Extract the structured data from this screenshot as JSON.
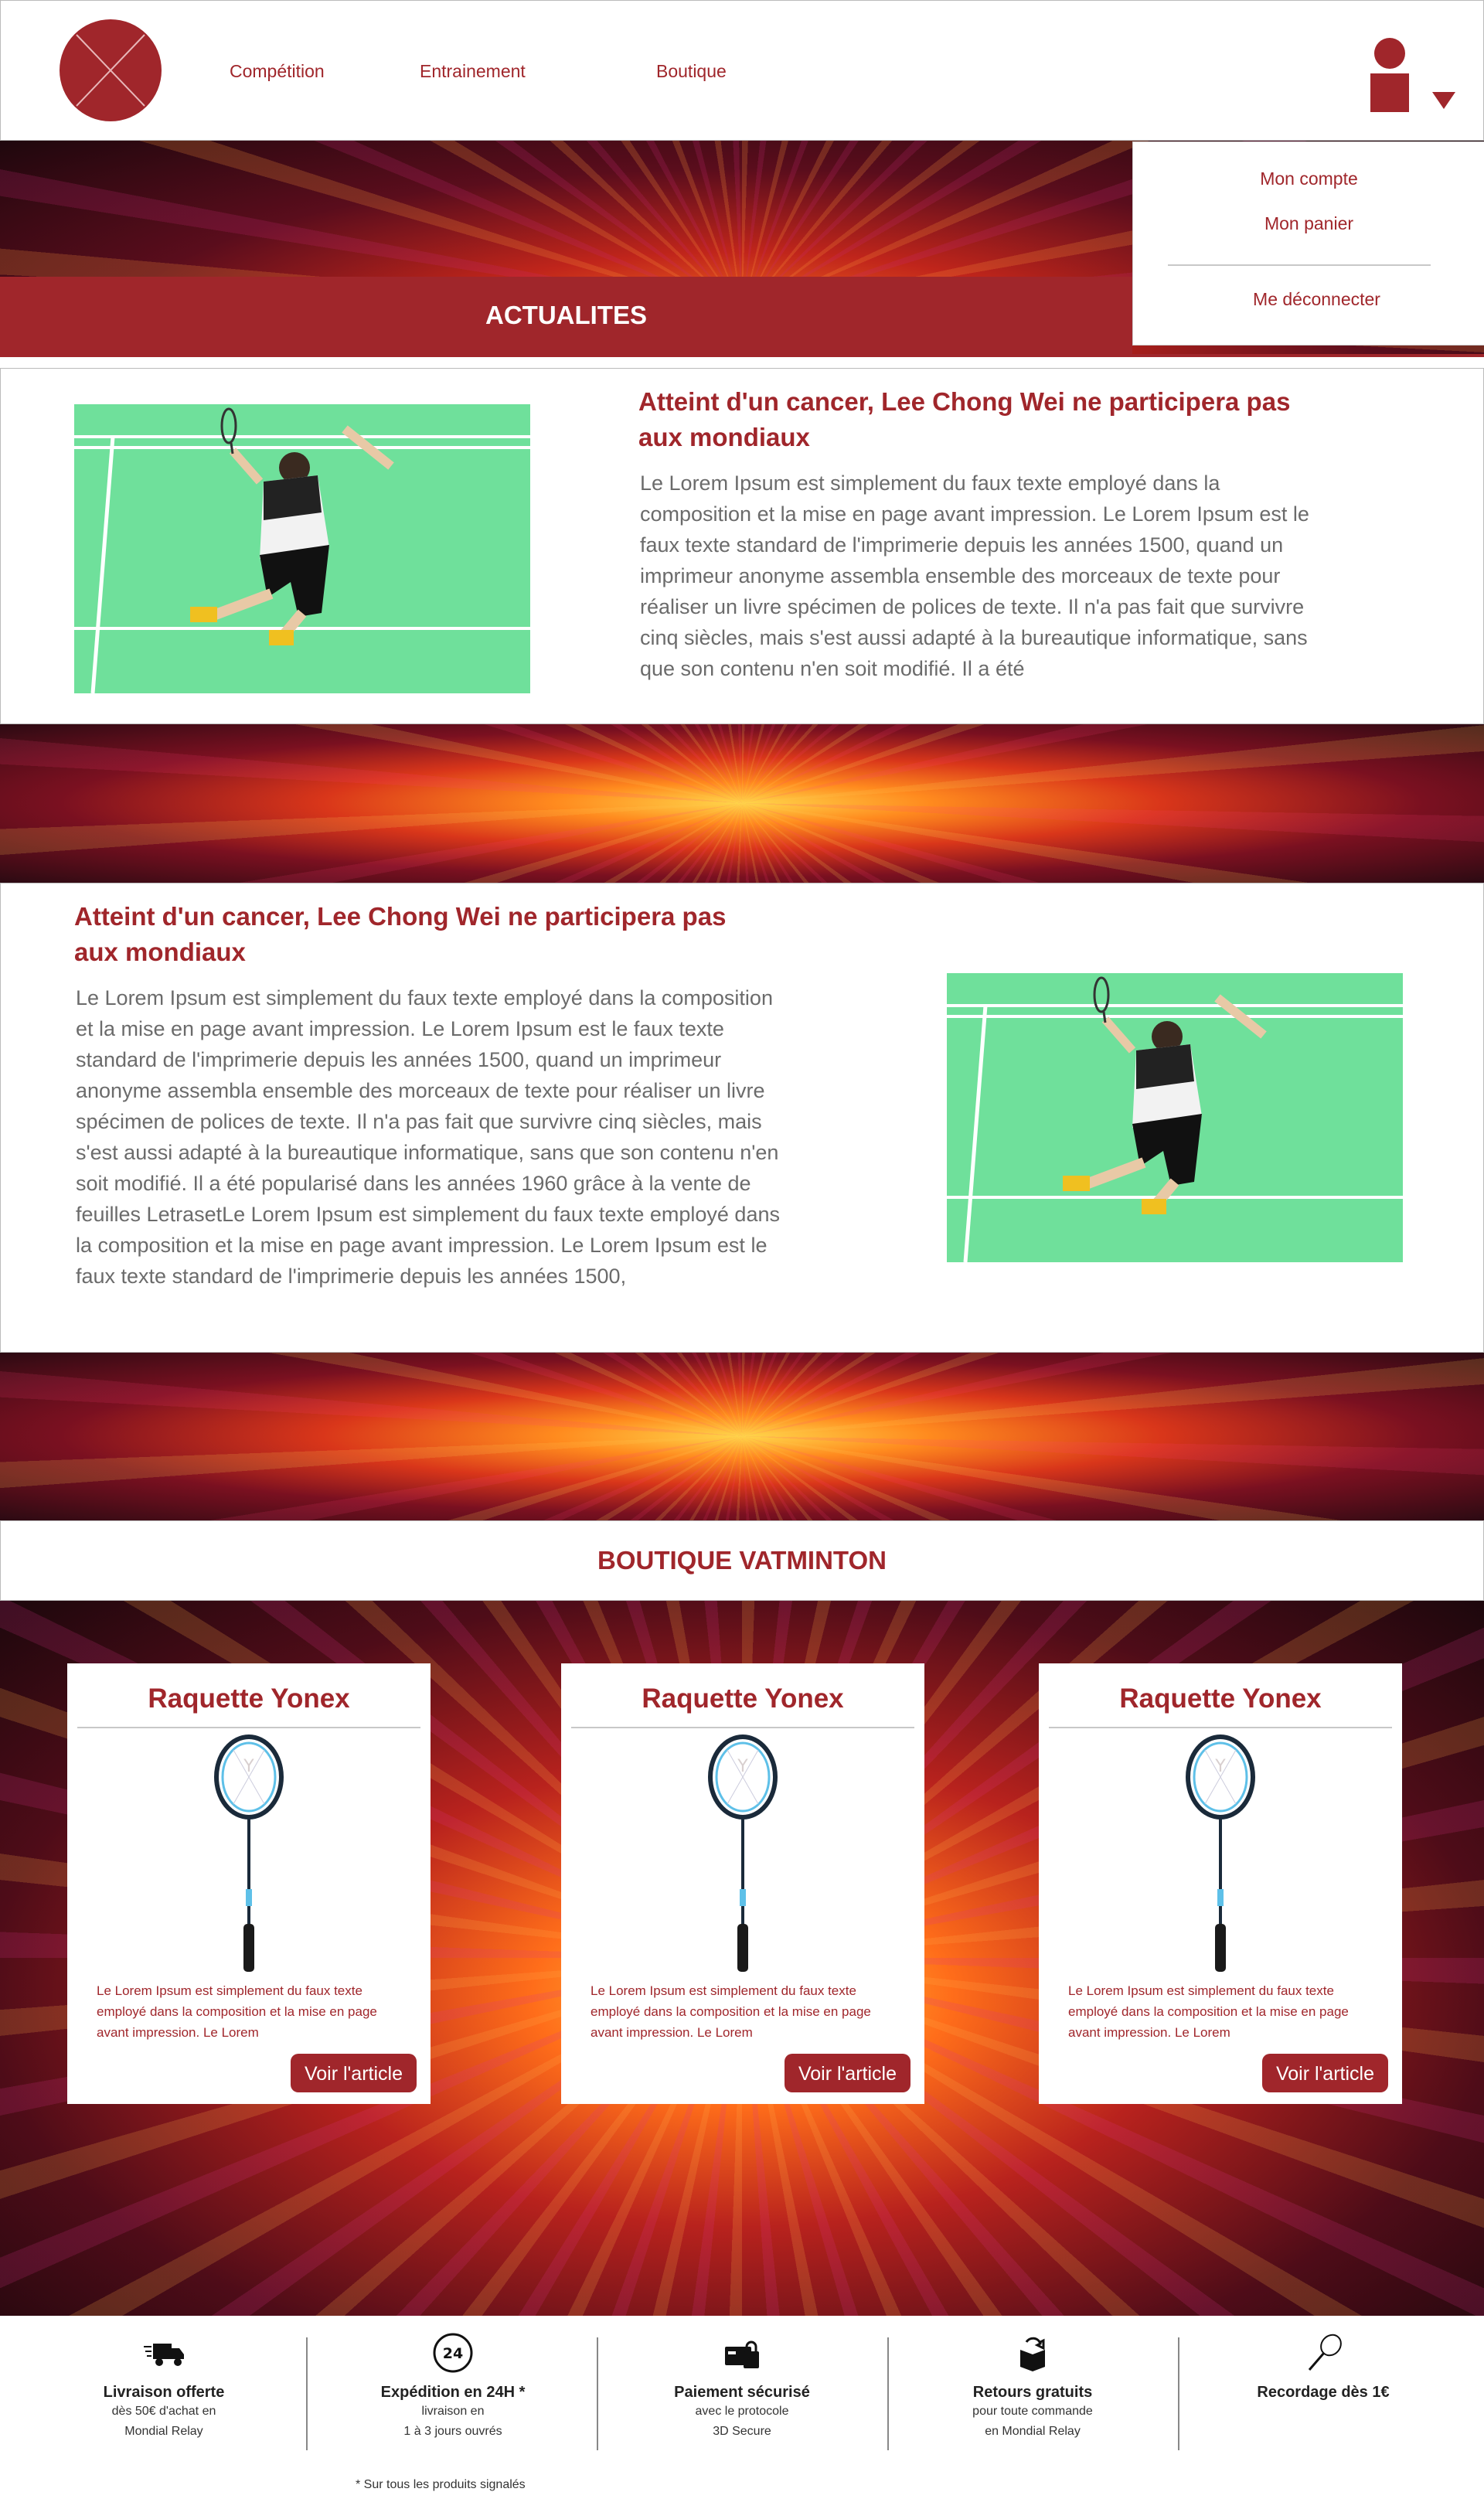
{
  "header": {
    "nav": [
      "Compétition",
      "Entrainement",
      "Boutique"
    ]
  },
  "user_menu": {
    "items": [
      "Mon compte",
      "Mon panier"
    ],
    "logout": "Me déconnecter"
  },
  "news": {
    "heading": "ACTUALITES",
    "articles": [
      {
        "title": "Atteint d'un cancer, Lee Chong Wei ne participera pas aux mondiaux",
        "body": "Le Lorem Ipsum est simplement du faux texte employé dans la composition et la mise en page avant impression. Le Lorem Ipsum est le faux texte standard de l'imprimerie depuis les années 1500, quand un imprimeur anonyme assembla ensemble des morceaux de texte pour réaliser un livre spécimen de polices de texte. Il n'a pas fait que survivre cinq siècles, mais s'est aussi adapté à la bureautique informatique, sans que son contenu n'en soit modifié. Il a été"
      },
      {
        "title": "Atteint d'un cancer, Lee Chong Wei ne participera pas aux mondiaux",
        "body": "Le Lorem Ipsum est simplement du faux texte employé dans la composition et la mise en page avant impression. Le Lorem Ipsum est le faux texte standard de l'imprimerie depuis les années 1500, quand un imprimeur anonyme assembla ensemble des morceaux de texte pour réaliser un livre spécimen de polices de texte. Il n'a pas fait que survivre cinq siècles, mais s'est aussi adapté à la bureautique informatique, sans que son contenu n'en soit modifié. Il a été popularisé dans les années 1960 grâce à la vente de feuilles LetrasetLe Lorem Ipsum est simplement du faux texte employé dans la composition et la mise en page avant impression. Le Lorem Ipsum est le faux texte standard de l'imprimerie depuis les années 1500,"
      }
    ]
  },
  "shop": {
    "heading": "BOUTIQUE VATMINTON",
    "products": [
      {
        "title": "Raquette Yonex",
        "desc": "Le Lorem Ipsum est simplement du faux texte employé dans la composition et la mise en page avant impression. Le Lorem",
        "button": "Voir l'article"
      },
      {
        "title": "Raquette Yonex",
        "desc": "Le Lorem Ipsum est simplement du faux texte employé dans la composition et la mise en page avant impression. Le Lorem",
        "button": "Voir l'article"
      },
      {
        "title": "Raquette Yonex",
        "desc": "Le Lorem Ipsum est simplement du faux texte employé dans la composition et la mise en page avant impression. Le Lorem",
        "button": "Voir l'article"
      }
    ]
  },
  "footer": {
    "features": [
      {
        "icon": "delivery-truck-icon",
        "head": "Livraison offerte",
        "sub1": "dès 50€ d'achat en",
        "sub2": "Mondial Relay"
      },
      {
        "icon": "24h-clock-icon",
        "head": "Expédition en 24H *",
        "sub1": "livraison en",
        "sub2": "1 à 3 jours ouvrés"
      },
      {
        "icon": "secure-payment-icon",
        "head": "Paiement sécurisé",
        "sub1": "avec le protocole",
        "sub2": "3D Secure"
      },
      {
        "icon": "return-box-icon",
        "head": "Retours gratuits",
        "sub1": "pour toute commande",
        "sub2": "en Mondial Relay"
      },
      {
        "icon": "racket-icon",
        "head": "Recordage dès 1€",
        "sub1": "",
        "sub2": ""
      }
    ],
    "note": "* Sur tous les produits signalés"
  },
  "colors": {
    "brand": "#a0262b",
    "court": "#6fe09b"
  }
}
